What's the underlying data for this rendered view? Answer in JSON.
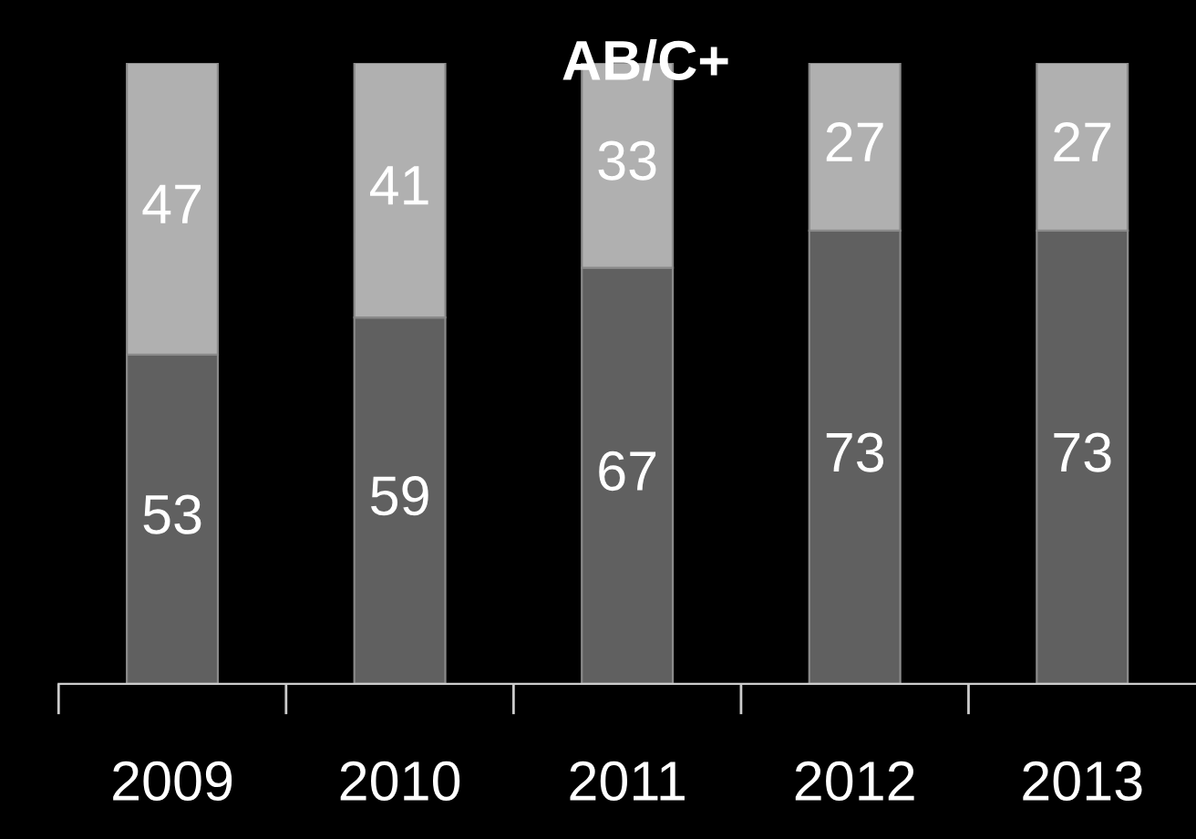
{
  "chart_data": {
    "type": "bar",
    "title": "AB/C+",
    "categories": [
      "2009",
      "2010",
      "2011",
      "2012",
      "2013"
    ],
    "stacked": true,
    "data_labels": true,
    "tick_labels": "x",
    "legend": false,
    "grid": false,
    "series": [
      {
        "color": "#606060",
        "values": [
          53,
          59,
          67,
          73,
          73
        ]
      },
      {
        "color": "#b0b0b0",
        "values": [
          47,
          41,
          33,
          27,
          27
        ]
      }
    ]
  }
}
